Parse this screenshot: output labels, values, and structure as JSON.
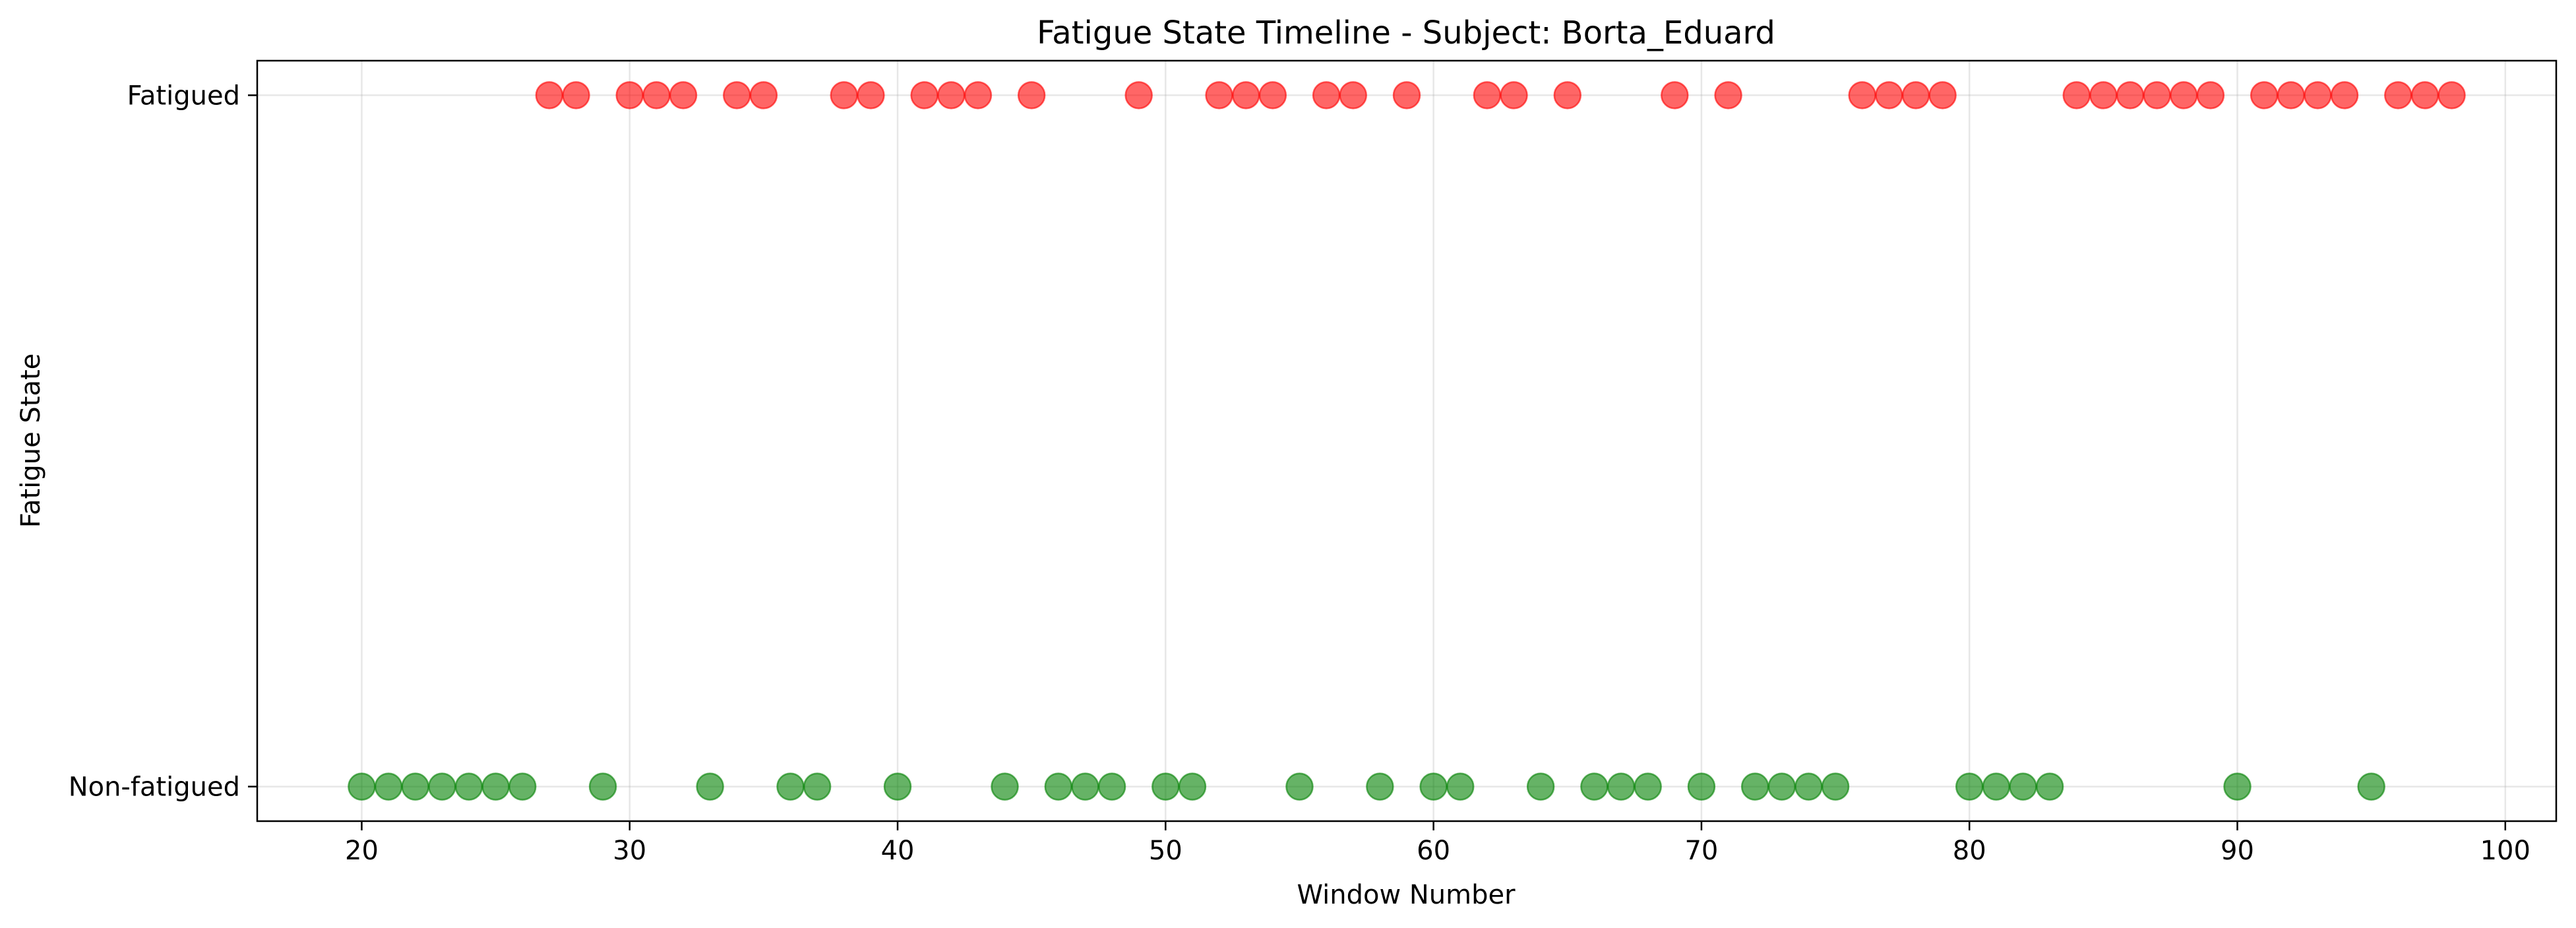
{
  "chart_data": {
    "type": "scatter",
    "title": "Fatigue State Timeline - Subject: Borta_Eduard",
    "xlabel": "Window Number",
    "ylabel": "Fatigue State",
    "xlim": [
      16.1,
      101.9
    ],
    "ylim": [
      -0.05,
      1.05
    ],
    "x_ticks": [
      20,
      30,
      40,
      50,
      60,
      70,
      80,
      90,
      100
    ],
    "y_ticks": [
      {
        "value": 0,
        "label": "Non-fatigued"
      },
      {
        "value": 1,
        "label": "Fatigued"
      }
    ],
    "grid": true,
    "series": [
      {
        "y": 1,
        "color": "#ff0000",
        "x": [
          27,
          28,
          30,
          31,
          32,
          34,
          35,
          38,
          39,
          41,
          42,
          43,
          45,
          49,
          52,
          53,
          54,
          56,
          57,
          59,
          62,
          63,
          65,
          69,
          71,
          76,
          77,
          78,
          79,
          84,
          85,
          86,
          87,
          88,
          89,
          91,
          92,
          93,
          94,
          96,
          97,
          98
        ]
      },
      {
        "y": 0,
        "color": "#008000",
        "x": [
          20,
          21,
          22,
          23,
          24,
          25,
          26,
          29,
          33,
          36,
          37,
          40,
          44,
          46,
          47,
          48,
          50,
          51,
          55,
          58,
          60,
          61,
          64,
          66,
          67,
          68,
          70,
          72,
          73,
          74,
          75,
          80,
          81,
          82,
          83,
          90,
          95
        ]
      }
    ]
  }
}
